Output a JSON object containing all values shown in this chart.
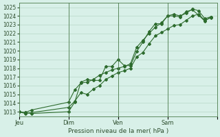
{
  "title": "",
  "xlabel": "Pression niveau de la mer( hPa )",
  "ylabel": "",
  "bg_color": "#d8f0e8",
  "grid_color": "#b8d8c8",
  "line_color": "#2d6b2d",
  "ylim": [
    1012.5,
    1025.5
  ],
  "yticks": [
    1013,
    1014,
    1015,
    1016,
    1017,
    1018,
    1019,
    1020,
    1021,
    1022,
    1023,
    1024,
    1025
  ],
  "day_positions": [
    0,
    48,
    96,
    144,
    192
  ],
  "day_labels": [
    "Jeu",
    "Dim",
    "Ven",
    "Sam",
    ""
  ],
  "series1": [
    [
      0,
      1013.0
    ],
    [
      6,
      1012.9
    ],
    [
      12,
      1012.8
    ],
    [
      48,
      1013.0
    ],
    [
      54,
      1014.1
    ],
    [
      60,
      1016.4
    ],
    [
      66,
      1016.7
    ],
    [
      72,
      1016.6
    ],
    [
      78,
      1016.6
    ],
    [
      84,
      1018.2
    ],
    [
      90,
      1018.2
    ],
    [
      96,
      1019.0
    ],
    [
      102,
      1018.3
    ],
    [
      108,
      1018.3
    ],
    [
      114,
      1019.9
    ],
    [
      120,
      1021.0
    ],
    [
      126,
      1022.2
    ],
    [
      132,
      1023.1
    ],
    [
      138,
      1023.1
    ],
    [
      144,
      1024.0
    ],
    [
      150,
      1024.0
    ],
    [
      156,
      1023.9
    ],
    [
      162,
      1024.5
    ],
    [
      168,
      1024.7
    ],
    [
      174,
      1024.1
    ],
    [
      180,
      1023.4
    ],
    [
      186,
      1023.9
    ]
  ],
  "series2": [
    [
      0,
      1013.0
    ],
    [
      6,
      1012.8
    ],
    [
      48,
      1013.5
    ],
    [
      54,
      1014.2
    ],
    [
      60,
      1015.2
    ],
    [
      66,
      1015.0
    ],
    [
      72,
      1015.6
    ],
    [
      78,
      1016.0
    ],
    [
      84,
      1016.7
    ],
    [
      90,
      1017.1
    ],
    [
      96,
      1017.5
    ],
    [
      102,
      1017.7
    ],
    [
      108,
      1018.0
    ],
    [
      114,
      1019.3
    ],
    [
      120,
      1019.8
    ],
    [
      126,
      1020.8
    ],
    [
      132,
      1021.7
    ],
    [
      138,
      1022.1
    ],
    [
      144,
      1022.5
    ],
    [
      150,
      1022.9
    ],
    [
      156,
      1023.0
    ],
    [
      162,
      1023.5
    ],
    [
      168,
      1024.0
    ],
    [
      174,
      1024.2
    ],
    [
      180,
      1023.5
    ],
    [
      186,
      1023.8
    ]
  ],
  "series3": [
    [
      0,
      1013.0
    ],
    [
      6,
      1012.9
    ],
    [
      12,
      1013.2
    ],
    [
      48,
      1014.1
    ],
    [
      54,
      1015.5
    ],
    [
      60,
      1016.3
    ],
    [
      66,
      1016.4
    ],
    [
      72,
      1016.7
    ],
    [
      78,
      1017.2
    ],
    [
      84,
      1017.5
    ],
    [
      90,
      1017.8
    ],
    [
      96,
      1018.0
    ],
    [
      102,
      1018.2
    ],
    [
      108,
      1018.5
    ],
    [
      114,
      1020.4
    ],
    [
      120,
      1021.2
    ],
    [
      126,
      1022.0
    ],
    [
      132,
      1022.7
    ],
    [
      138,
      1023.2
    ],
    [
      144,
      1024.0
    ],
    [
      150,
      1024.2
    ],
    [
      156,
      1024.0
    ],
    [
      162,
      1024.3
    ],
    [
      168,
      1024.8
    ],
    [
      174,
      1024.6
    ],
    [
      180,
      1023.7
    ],
    [
      186,
      1023.9
    ]
  ]
}
